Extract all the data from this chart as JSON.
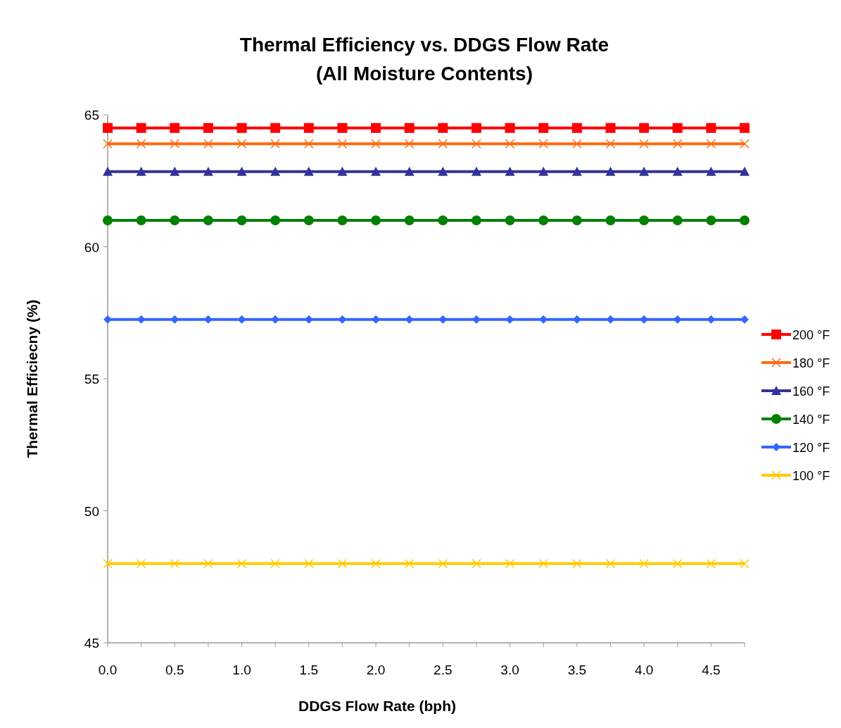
{
  "chart_data": {
    "type": "line",
    "title": "Thermal Efficiency vs. DDGS Flow Rate",
    "subtitle": "(All Moisture Contents)",
    "xlabel": "DDGS Flow Rate (bph)",
    "ylabel": "Thermal Efficiecny (%)",
    "x": [
      0,
      0.25,
      0.5,
      0.75,
      1,
      1.25,
      1.5,
      1.75,
      2,
      2.25,
      2.5,
      2.75,
      3,
      3.25,
      3.5,
      3.75,
      4,
      4.25,
      4.5,
      4.75
    ],
    "series": [
      {
        "name": "200 °F",
        "color": "#ff0000",
        "marker": "square",
        "values": [
          64.5,
          64.5,
          64.5,
          64.5,
          64.5,
          64.5,
          64.5,
          64.5,
          64.5,
          64.5,
          64.5,
          64.5,
          64.5,
          64.5,
          64.5,
          64.5,
          64.5,
          64.5,
          64.5,
          64.5
        ]
      },
      {
        "name": "180 °F",
        "color": "#ff6a10",
        "marker": "cross",
        "values": [
          63.9,
          63.9,
          63.9,
          63.9,
          63.9,
          63.9,
          63.9,
          63.9,
          63.9,
          63.9,
          63.9,
          63.9,
          63.9,
          63.9,
          63.9,
          63.9,
          63.9,
          63.9,
          63.9,
          63.9
        ]
      },
      {
        "name": "160 °F",
        "color": "#333399",
        "marker": "triangle",
        "values": [
          62.85,
          62.85,
          62.85,
          62.85,
          62.85,
          62.85,
          62.85,
          62.85,
          62.85,
          62.85,
          62.85,
          62.85,
          62.85,
          62.85,
          62.85,
          62.85,
          62.85,
          62.85,
          62.85,
          62.85
        ]
      },
      {
        "name": "140 °F",
        "color": "#008000",
        "marker": "circle",
        "values": [
          61,
          61,
          61,
          61,
          61,
          61,
          61,
          61,
          61,
          61,
          61,
          61,
          61,
          61,
          61,
          61,
          61,
          61,
          61,
          61
        ]
      },
      {
        "name": "120 °F",
        "color": "#3366ff",
        "marker": "diamond",
        "values": [
          57.25,
          57.25,
          57.25,
          57.25,
          57.25,
          57.25,
          57.25,
          57.25,
          57.25,
          57.25,
          57.25,
          57.25,
          57.25,
          57.25,
          57.25,
          57.25,
          57.25,
          57.25,
          57.25,
          57.25
        ]
      },
      {
        "name": "100 °F",
        "color": "#ffcc00",
        "marker": "cross",
        "values": [
          48,
          48,
          48,
          48,
          48,
          48,
          48,
          48,
          48,
          48,
          48,
          48,
          48,
          48,
          48,
          48,
          48,
          48,
          48,
          48
        ]
      }
    ],
    "xlim": [
      0,
      4.75
    ],
    "xticks": [
      {
        "value": 0,
        "label": "0.0"
      },
      {
        "value": 0.25,
        "label": null
      },
      {
        "value": 0.5,
        "label": "0.5"
      },
      {
        "value": 0.75,
        "label": null
      },
      {
        "value": 1,
        "label": "1.0"
      },
      {
        "value": 1.25,
        "label": null
      },
      {
        "value": 1.5,
        "label": "1.5"
      },
      {
        "value": 1.75,
        "label": null
      },
      {
        "value": 2,
        "label": "2.0"
      },
      {
        "value": 2.25,
        "label": null
      },
      {
        "value": 2.5,
        "label": "2.5"
      },
      {
        "value": 2.75,
        "label": null
      },
      {
        "value": 3,
        "label": "3.0"
      },
      {
        "value": 3.25,
        "label": null
      },
      {
        "value": 3.5,
        "label": "3.5"
      },
      {
        "value": 3.75,
        "label": null
      },
      {
        "value": 4,
        "label": "4.0"
      },
      {
        "value": 4.25,
        "label": null
      },
      {
        "value": 4.5,
        "label": "4.5"
      },
      {
        "value": 4.75,
        "label": null
      }
    ],
    "ylim": [
      45,
      65
    ],
    "yticks": [
      45,
      50,
      55,
      60,
      65
    ],
    "grid": false,
    "legend": "right"
  }
}
